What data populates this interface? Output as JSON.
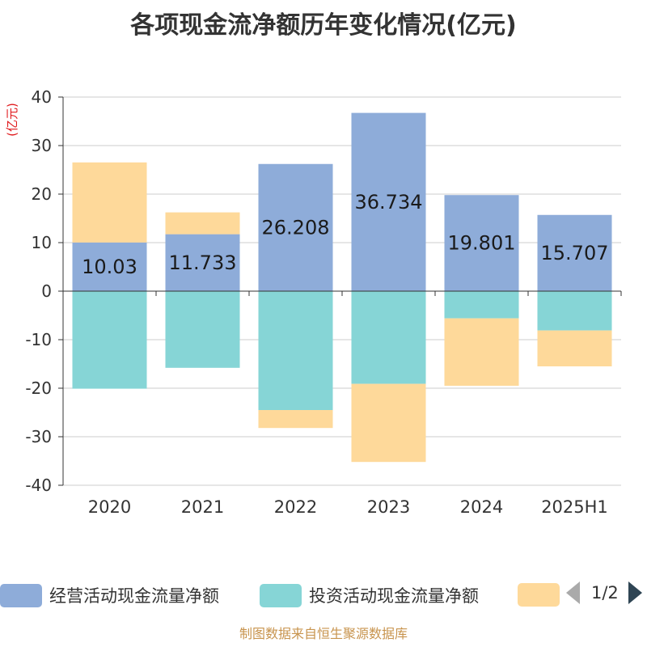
{
  "title": "各项现金流净额历年变化情况(亿元)",
  "source": "制图数据来自恒生聚源数据库",
  "chart_data": {
    "type": "bar",
    "stacked": true,
    "title": "各项现金流净额历年变化情况(亿元)",
    "ylabel": "(亿元)",
    "ylim": [
      -40,
      40
    ],
    "yticks": [
      40,
      30,
      20,
      10,
      0,
      -10,
      -20,
      -30,
      -40
    ],
    "grid": true,
    "categories": [
      "2020",
      "2021",
      "2022",
      "2023",
      "2024",
      "2025H1"
    ],
    "series": [
      {
        "name": "经营活动现金流量净额",
        "color": "#8eacd9",
        "values": [
          10.03,
          11.733,
          26.208,
          36.734,
          19.801,
          15.707
        ],
        "labels": [
          "10.03",
          "11.733",
          "26.208",
          "36.734",
          "19.801",
          "15.707"
        ]
      },
      {
        "name": "投资活动现金流量净额",
        "color": "#86d5d6",
        "values": [
          -20.1,
          -15.8,
          -24.5,
          -19.1,
          -5.6,
          -8.1
        ]
      },
      {
        "name": "",
        "color": "#fed99a",
        "values": [
          16.5,
          4.5,
          -3.7,
          -16.1,
          -13.9,
          -7.4
        ]
      }
    ],
    "legend": {
      "position": "bottom",
      "page": "1/2"
    }
  }
}
